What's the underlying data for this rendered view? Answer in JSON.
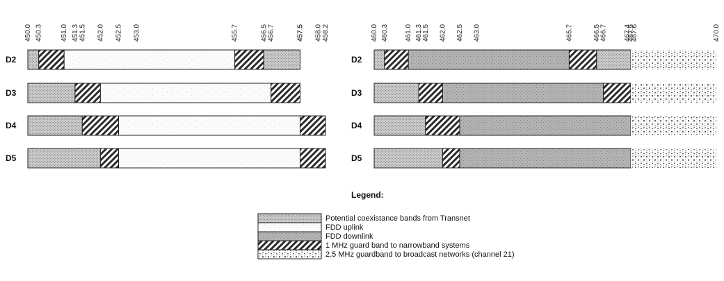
{
  "band_plan_1": {
    "ticks": [
      "450.0",
      "450.3",
      "451.0",
      "451.3",
      "451.5",
      "452.0",
      "452.5",
      "453.0",
      "455.7",
      "456.5",
      "456.7",
      "457.5",
      "457.5",
      "458.0",
      "458.2"
    ],
    "tick_values": [
      450.0,
      450.3,
      451.0,
      451.3,
      451.5,
      452.0,
      452.5,
      453.0,
      455.7,
      456.5,
      456.7,
      457.5,
      457.5,
      458.0,
      458.2
    ],
    "rows": [
      {
        "label": "D2",
        "segments": [
          {
            "from": 450.0,
            "to": 450.3,
            "band": "coexistence"
          },
          {
            "from": 450.3,
            "to": 451.0,
            "band": "guard1"
          },
          {
            "from": 451.0,
            "to": 455.7,
            "band": "uplink"
          },
          {
            "from": 455.7,
            "to": 456.5,
            "band": "guard1"
          },
          {
            "from": 456.5,
            "to": 457.5,
            "band": "coexistence"
          }
        ]
      },
      {
        "label": "D3",
        "segments": [
          {
            "from": 450.0,
            "to": 451.3,
            "band": "coexistence"
          },
          {
            "from": 451.3,
            "to": 452.0,
            "band": "guard1"
          },
          {
            "from": 452.0,
            "to": 456.7,
            "band": "uplink"
          },
          {
            "from": 456.7,
            "to": 457.5,
            "band": "guard1"
          }
        ]
      },
      {
        "label": "D4",
        "segments": [
          {
            "from": 450.0,
            "to": 451.5,
            "band": "coexistence"
          },
          {
            "from": 451.5,
            "to": 452.5,
            "band": "guard1"
          },
          {
            "from": 452.5,
            "to": 457.5,
            "band": "uplink"
          },
          {
            "from": 457.5,
            "to": 458.2,
            "band": "guard1"
          }
        ]
      },
      {
        "label": "D5",
        "segments": [
          {
            "from": 450.0,
            "to": 452.0,
            "band": "coexistence"
          },
          {
            "from": 452.0,
            "to": 452.5,
            "band": "guard1"
          },
          {
            "from": 452.5,
            "to": 457.5,
            "band": "uplink"
          },
          {
            "from": 457.5,
            "to": 458.2,
            "band": "guard1"
          }
        ]
      }
    ]
  },
  "band_plan_2": {
    "ticks": [
      "460.0",
      "460.3",
      "461.0",
      "461.3",
      "461.5",
      "462.0",
      "462.5",
      "463.0",
      "465.7",
      "466.5",
      "466.7",
      "467.4",
      "467.5",
      "467.6",
      "470.0"
    ],
    "tick_values": [
      460.0,
      460.3,
      461.0,
      461.3,
      461.5,
      462.0,
      462.5,
      463.0,
      465.7,
      466.5,
      466.7,
      467.4,
      467.5,
      467.6,
      470.0
    ],
    "rows": [
      {
        "label": "D2",
        "segments": [
          {
            "from": 460.0,
            "to": 460.3,
            "band": "coexistence"
          },
          {
            "from": 460.3,
            "to": 461.0,
            "band": "guard1"
          },
          {
            "from": 461.0,
            "to": 465.7,
            "band": "downlink"
          },
          {
            "from": 465.7,
            "to": 466.5,
            "band": "guard1"
          },
          {
            "from": 466.5,
            "to": 467.5,
            "band": "coexistence"
          },
          {
            "from": 467.5,
            "to": 470.0,
            "band": "guard25"
          }
        ]
      },
      {
        "label": "D3",
        "segments": [
          {
            "from": 460.0,
            "to": 461.3,
            "band": "coexistence"
          },
          {
            "from": 461.3,
            "to": 462.0,
            "band": "guard1"
          },
          {
            "from": 462.0,
            "to": 466.7,
            "band": "downlink"
          },
          {
            "from": 466.7,
            "to": 467.5,
            "band": "guard1"
          },
          {
            "from": 467.5,
            "to": 470.0,
            "band": "guard25"
          }
        ]
      },
      {
        "label": "D4",
        "segments": [
          {
            "from": 460.0,
            "to": 461.5,
            "band": "coexistence"
          },
          {
            "from": 461.5,
            "to": 462.5,
            "band": "guard1"
          },
          {
            "from": 462.5,
            "to": 467.5,
            "band": "downlink"
          },
          {
            "from": 467.5,
            "to": 470.0,
            "band": "guard25"
          }
        ]
      },
      {
        "label": "D5",
        "segments": [
          {
            "from": 460.0,
            "to": 462.0,
            "band": "coexistence"
          },
          {
            "from": 462.0,
            "to": 462.5,
            "band": "guard1"
          },
          {
            "from": 462.5,
            "to": 467.5,
            "band": "downlink"
          },
          {
            "from": 467.5,
            "to": 470.0,
            "band": "guard25"
          }
        ]
      }
    ]
  },
  "legend": {
    "title": "Legend:",
    "items": [
      {
        "band": "coexistence",
        "label": "Potential coexistance bands from Transnet"
      },
      {
        "band": "uplink",
        "label": "FDD uplink"
      },
      {
        "band": "downlink",
        "label": "FDD downlink"
      },
      {
        "band": "guard1",
        "label": "1 MHz guard band to narrowband systems"
      },
      {
        "band": "guard25",
        "label": "2.5 MHz guardband to broadcast networks (channel 21)"
      }
    ]
  }
}
